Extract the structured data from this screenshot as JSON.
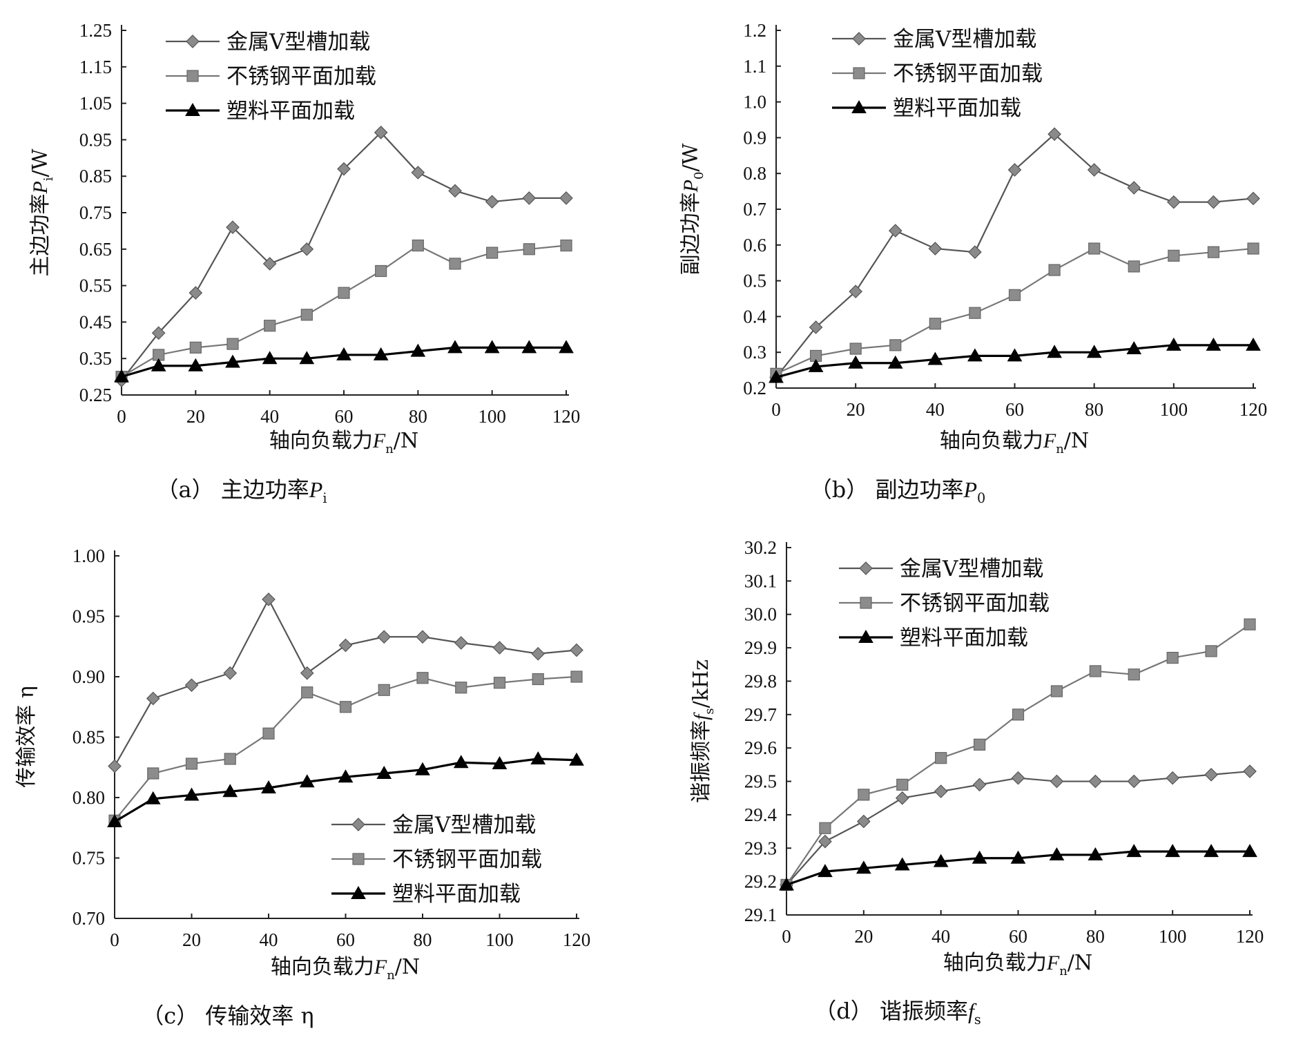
{
  "chart_data": [
    {
      "type": "line",
      "caption_prefix": "（a）",
      "caption": "主边功率",
      "caption_var": "P",
      "caption_sub": "i",
      "xlabel": "轴向负载力",
      "xlabel_var": "F",
      "xlabel_sub": "n",
      "xlabel_unit": "/N",
      "ylabel": "主边功率",
      "ylabel_var": "P",
      "ylabel_sub": "i",
      "ylabel_unit": "/W",
      "xlim": [
        0,
        120
      ],
      "ylim": [
        0.25,
        1.25
      ],
      "xticks": [
        "0",
        "20",
        "40",
        "60",
        "80",
        "100",
        "120"
      ],
      "yticks": [
        "0.25",
        "0.35",
        "0.45",
        "0.55",
        "0.65",
        "0.75",
        "0.85",
        "0.95",
        "1.05",
        "1.15",
        "1.25"
      ],
      "legend_position": "top-left",
      "x": [
        0,
        10,
        20,
        30,
        40,
        50,
        60,
        70,
        80,
        90,
        100,
        110,
        120
      ],
      "series": [
        {
          "name": "金属V型槽加载",
          "marker": "diamond",
          "color": "#555555",
          "values": [
            0.29,
            0.42,
            0.53,
            0.71,
            0.61,
            0.65,
            0.87,
            0.97,
            0.86,
            0.81,
            0.78,
            0.79,
            0.79
          ]
        },
        {
          "name": "不锈钢平面加载",
          "marker": "square",
          "color": "#777777",
          "values": [
            0.3,
            0.36,
            0.38,
            0.39,
            0.44,
            0.47,
            0.53,
            0.59,
            0.66,
            0.61,
            0.64,
            0.65,
            0.66
          ]
        },
        {
          "name": "塑料平面加载",
          "marker": "triangle",
          "color": "#000000",
          "values": [
            0.3,
            0.33,
            0.33,
            0.34,
            0.35,
            0.35,
            0.36,
            0.36,
            0.37,
            0.38,
            0.38,
            0.38,
            0.38
          ]
        }
      ]
    },
    {
      "type": "line",
      "caption_prefix": "（b）",
      "caption": "副边功率",
      "caption_var": "P",
      "caption_sub": "0",
      "xlabel": "轴向负载力",
      "xlabel_var": "F",
      "xlabel_sub": "n",
      "xlabel_unit": "/N",
      "ylabel": "副边功率",
      "ylabel_var": "P",
      "ylabel_sub": "0",
      "ylabel_unit": "/W",
      "xlim": [
        0,
        120
      ],
      "ylim": [
        0.2,
        1.2
      ],
      "xticks": [
        "0",
        "20",
        "40",
        "60",
        "80",
        "100",
        "120"
      ],
      "yticks": [
        "0.2",
        "0.3",
        "0.4",
        "0.5",
        "0.6",
        "0.7",
        "0.8",
        "0.9",
        "1.0",
        "1.1",
        "1.2"
      ],
      "legend_position": "top-left",
      "x": [
        0,
        10,
        20,
        30,
        40,
        50,
        60,
        70,
        80,
        90,
        100,
        110,
        120
      ],
      "series": [
        {
          "name": "金属V型槽加载",
          "marker": "diamond",
          "color": "#555555",
          "values": [
            0.23,
            0.37,
            0.47,
            0.64,
            0.59,
            0.58,
            0.81,
            0.91,
            0.81,
            0.76,
            0.72,
            0.72,
            0.73
          ]
        },
        {
          "name": "不锈钢平面加载",
          "marker": "square",
          "color": "#777777",
          "values": [
            0.24,
            0.29,
            0.31,
            0.32,
            0.38,
            0.41,
            0.46,
            0.53,
            0.59,
            0.54,
            0.57,
            0.58,
            0.59
          ]
        },
        {
          "name": "塑料平面加载",
          "marker": "triangle",
          "color": "#000000",
          "values": [
            0.23,
            0.26,
            0.27,
            0.27,
            0.28,
            0.29,
            0.29,
            0.3,
            0.3,
            0.31,
            0.32,
            0.32,
            0.32
          ]
        }
      ]
    },
    {
      "type": "line",
      "caption_prefix": "（c）",
      "caption": "传输效率 η",
      "caption_var": "",
      "caption_sub": "",
      "xlabel": "轴向负载力",
      "xlabel_var": "F",
      "xlabel_sub": "n",
      "xlabel_unit": "/N",
      "ylabel": "传输效率 η",
      "ylabel_var": "",
      "ylabel_sub": "",
      "ylabel_unit": "",
      "xlim": [
        0,
        120
      ],
      "ylim": [
        0.7,
        1.0
      ],
      "xticks": [
        "0",
        "20",
        "40",
        "60",
        "80",
        "100",
        "120"
      ],
      "yticks": [
        "0.70",
        "0.75",
        "0.80",
        "0.85",
        "0.90",
        "0.95",
        "1.00"
      ],
      "legend_position": "bottom-right",
      "x": [
        0,
        10,
        20,
        30,
        40,
        50,
        60,
        70,
        80,
        90,
        100,
        110,
        120
      ],
      "series": [
        {
          "name": "金属V型槽加载",
          "marker": "diamond",
          "color": "#555555",
          "values": [
            0.826,
            0.882,
            0.893,
            0.903,
            0.964,
            0.903,
            0.926,
            0.933,
            0.933,
            0.928,
            0.924,
            0.919,
            0.922
          ]
        },
        {
          "name": "不锈钢平面加载",
          "marker": "square",
          "color": "#777777",
          "values": [
            0.781,
            0.82,
            0.828,
            0.832,
            0.853,
            0.887,
            0.875,
            0.889,
            0.899,
            0.891,
            0.895,
            0.898,
            0.9
          ]
        },
        {
          "name": "塑料平面加载",
          "marker": "triangle",
          "color": "#000000",
          "values": [
            0.78,
            0.799,
            0.802,
            0.805,
            0.808,
            0.813,
            0.817,
            0.82,
            0.823,
            0.829,
            0.828,
            0.832,
            0.831
          ]
        }
      ]
    },
    {
      "type": "line",
      "caption_prefix": "（d）",
      "caption": "谐振频率",
      "caption_var": "f",
      "caption_sub": "s",
      "xlabel": "轴向负载力",
      "xlabel_var": "F",
      "xlabel_sub": "n",
      "xlabel_unit": "/N",
      "ylabel": "谐振频率",
      "ylabel_var": "f",
      "ylabel_sub": "s",
      "ylabel_unit": "/kHz",
      "xlim": [
        0,
        120
      ],
      "ylim": [
        29.1,
        30.2
      ],
      "xticks": [
        "0",
        "20",
        "40",
        "60",
        "80",
        "100",
        "120"
      ],
      "yticks": [
        "29.1",
        "29.2",
        "29.3",
        "29.4",
        "29.5",
        "29.6",
        "29.7",
        "29.8",
        "29.9",
        "30.0",
        "30.1",
        "30.2"
      ],
      "legend_position": "top-left",
      "x": [
        0,
        10,
        20,
        30,
        40,
        50,
        60,
        70,
        80,
        90,
        100,
        110,
        120
      ],
      "series": [
        {
          "name": "金属V型槽加载",
          "marker": "diamond",
          "color": "#555555",
          "values": [
            29.19,
            29.32,
            29.38,
            29.45,
            29.47,
            29.49,
            29.51,
            29.5,
            29.5,
            29.5,
            29.51,
            29.52,
            29.53
          ]
        },
        {
          "name": "不锈钢平面加载",
          "marker": "square",
          "color": "#777777",
          "values": [
            29.19,
            29.36,
            29.46,
            29.49,
            29.57,
            29.61,
            29.7,
            29.77,
            29.83,
            29.82,
            29.87,
            29.89,
            29.97
          ]
        },
        {
          "name": "塑料平面加载",
          "marker": "triangle",
          "color": "#000000",
          "values": [
            29.19,
            29.23,
            29.24,
            29.25,
            29.26,
            29.27,
            29.27,
            29.28,
            29.28,
            29.29,
            29.29,
            29.29,
            29.29
          ]
        }
      ]
    }
  ]
}
